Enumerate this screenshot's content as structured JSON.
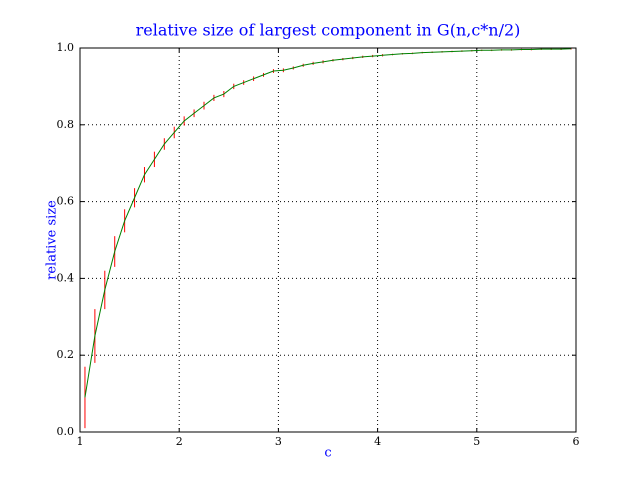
{
  "chart_data": {
    "type": "line",
    "title": "relative size of largest component in G(n,c*n/2)",
    "x_label": "c",
    "y_label": "relative size",
    "x": [
      1.05,
      1.15,
      1.25,
      1.35,
      1.45,
      1.55,
      1.65,
      1.75,
      1.85,
      1.95,
      2.05,
      2.15,
      2.25,
      2.35,
      2.45,
      2.55,
      2.65,
      2.75,
      2.85,
      2.95,
      3.05,
      3.15,
      3.25,
      3.35,
      3.45,
      3.55,
      3.65,
      3.75,
      3.85,
      3.95,
      4.05,
      4.15,
      4.25,
      4.35,
      4.45,
      4.55,
      4.65,
      4.75,
      4.85,
      4.95,
      5.05,
      5.15,
      5.25,
      5.35,
      5.45,
      5.55,
      5.65,
      5.75,
      5.85,
      5.95
    ],
    "series": [
      {
        "color": "#008000",
        "error_color": "#ff0000",
        "values": [
          0.09,
          0.25,
          0.37,
          0.47,
          0.55,
          0.61,
          0.67,
          0.71,
          0.75,
          0.78,
          0.81,
          0.83,
          0.85,
          0.87,
          0.88,
          0.9,
          0.91,
          0.92,
          0.93,
          0.94,
          0.942,
          0.948,
          0.955,
          0.96,
          0.964,
          0.968,
          0.971,
          0.974,
          0.977,
          0.979,
          0.981,
          0.983,
          0.985,
          0.986,
          0.988,
          0.989,
          0.99,
          0.991,
          0.992,
          0.993,
          0.994,
          0.994,
          0.995,
          0.995,
          0.996,
          0.996,
          0.997,
          0.997,
          0.997,
          0.998
        ],
        "errors": [
          0.08,
          0.07,
          0.05,
          0.04,
          0.03,
          0.025,
          0.02,
          0.02,
          0.015,
          0.015,
          0.012,
          0.01,
          0.01,
          0.008,
          0.008,
          0.007,
          0.006,
          0.006,
          0.005,
          0.005,
          0.005,
          0.004,
          0.004,
          0.004,
          0.004,
          0.003,
          0.003,
          0.003,
          0.003,
          0.003,
          0.003,
          0.002,
          0.002,
          0.002,
          0.002,
          0.002,
          0.002,
          0.002,
          0.002,
          0.002,
          0.002,
          0.002,
          0.002,
          0.002,
          0.002,
          0.002,
          0.002,
          0.002,
          0.002,
          0.002
        ]
      }
    ],
    "xlim": [
      1,
      6
    ],
    "xticks": [
      1,
      2,
      3,
      4,
      5,
      6
    ],
    "ylim": [
      0,
      1
    ],
    "yticks": [
      {
        "value": 0,
        "label": "0.0"
      },
      0.2,
      0.4,
      0.6,
      0.8,
      {
        "value": 1,
        "label": "1.0"
      }
    ],
    "grid": true
  }
}
